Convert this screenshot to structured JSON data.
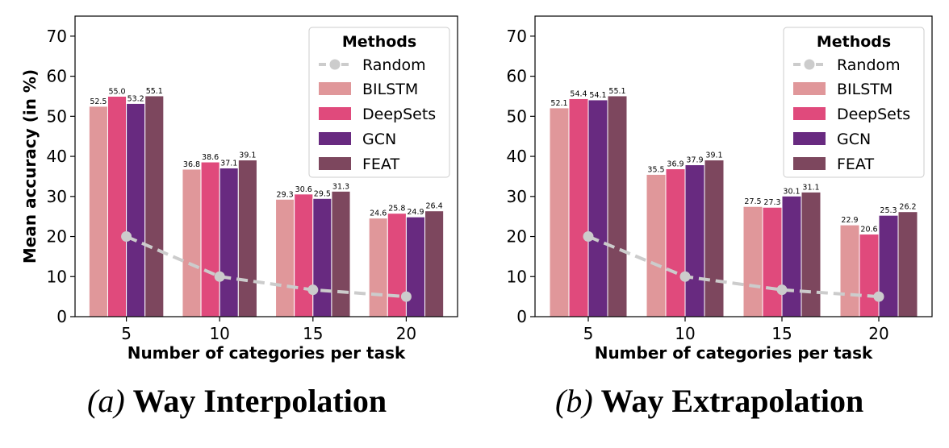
{
  "colors": {
    "BILSTM": "#e0979a",
    "DeepSets": "#e04a7c",
    "GCN": "#682a80",
    "FEAT": "#7d475e",
    "Random": "#cccccc"
  },
  "chart_data": [
    {
      "type": "bar",
      "title": "",
      "xlabel": "Number of categories per task",
      "ylabel": "Mean accuracy (in %)",
      "ylim": [
        0,
        75
      ],
      "yticks": [
        0,
        10,
        20,
        30,
        40,
        50,
        60,
        70
      ],
      "categories": [
        "5",
        "10",
        "15",
        "20"
      ],
      "legend": {
        "title": "Methods",
        "placement": "upper-right"
      },
      "series": [
        {
          "name": "BILSTM",
          "values": [
            52.5,
            36.8,
            29.3,
            24.6
          ]
        },
        {
          "name": "DeepSets",
          "values": [
            55.0,
            38.6,
            30.6,
            25.8
          ]
        },
        {
          "name": "GCN",
          "values": [
            53.2,
            37.1,
            29.5,
            24.9
          ]
        },
        {
          "name": "FEAT",
          "values": [
            55.1,
            39.1,
            31.3,
            26.4
          ]
        }
      ],
      "line_series": {
        "name": "Random",
        "values": [
          20,
          10,
          6.7,
          5
        ]
      },
      "caption": {
        "tag": "(a)",
        "text": "Way Interpolation"
      }
    },
    {
      "type": "bar",
      "title": "",
      "xlabel": "Number of categories per task",
      "ylabel": "",
      "ylim": [
        0,
        75
      ],
      "yticks": [
        0,
        10,
        20,
        30,
        40,
        50,
        60,
        70
      ],
      "categories": [
        "5",
        "10",
        "15",
        "20"
      ],
      "legend": {
        "title": "Methods",
        "placement": "upper-right"
      },
      "series": [
        {
          "name": "BILSTM",
          "values": [
            52.1,
            35.5,
            27.5,
            22.9
          ]
        },
        {
          "name": "DeepSets",
          "values": [
            54.4,
            36.9,
            27.3,
            20.6
          ]
        },
        {
          "name": "GCN",
          "values": [
            54.1,
            37.9,
            30.1,
            25.3
          ]
        },
        {
          "name": "FEAT",
          "values": [
            55.1,
            39.1,
            31.1,
            26.2
          ]
        }
      ],
      "line_series": {
        "name": "Random",
        "values": [
          20,
          10,
          6.7,
          5
        ]
      },
      "caption": {
        "tag": "(b)",
        "text": "Way Extrapolation"
      }
    }
  ]
}
